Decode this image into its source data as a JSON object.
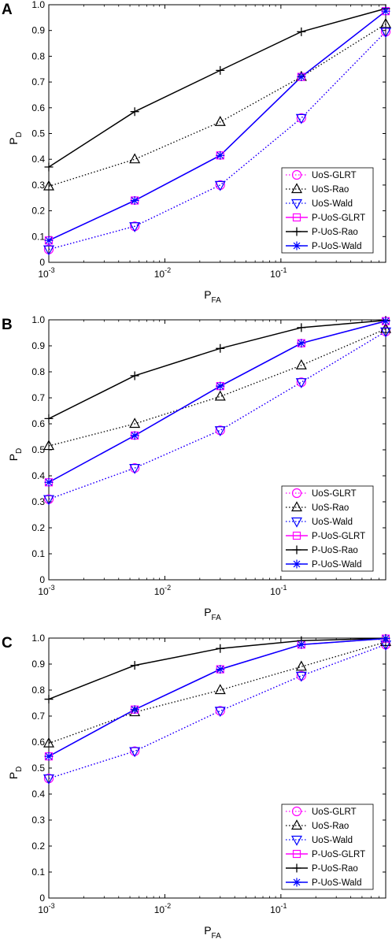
{
  "chart_data": [
    {
      "type": "line",
      "panel": "A",
      "xscale": "log",
      "xlim": [
        0.001,
        0.8
      ],
      "ylim": [
        0,
        1
      ],
      "xlabel_main": "P",
      "xlabel_sub": "FA",
      "ylabel_main": "P",
      "ylabel_sub": "D",
      "x_ticks": [
        {
          "base": "10",
          "exp": "-3"
        },
        {
          "base": "10",
          "exp": "-2"
        },
        {
          "base": "10",
          "exp": "-1"
        }
      ],
      "y_ticks": [
        "0",
        "0.1",
        "0.2",
        "0.3",
        "0.4",
        "0.5",
        "0.6",
        "0.7",
        "0.8",
        "0.9",
        "1.0"
      ],
      "grid": false,
      "legend_position": "bottom-right",
      "x": [
        0.001,
        0.0055,
        0.03,
        0.15,
        0.8
      ],
      "series": [
        {
          "name": "UoS-GLRT",
          "color": "#ff00ff",
          "line": "dotted",
          "marker": "circle",
          "values": [
            0.05,
            0.14,
            0.3,
            0.56,
            0.895
          ]
        },
        {
          "name": "UoS-Rao",
          "color": "#000000",
          "line": "dotted",
          "marker": "triangle-up",
          "values": [
            0.295,
            0.4,
            0.545,
            0.72,
            0.925
          ]
        },
        {
          "name": "UoS-Wald",
          "color": "#0000ff",
          "line": "dotted",
          "marker": "triangle-down",
          "values": [
            0.05,
            0.14,
            0.3,
            0.56,
            0.895
          ]
        },
        {
          "name": "P-UoS-GLRT",
          "color": "#ff00ff",
          "line": "solid",
          "marker": "square",
          "values": [
            0.085,
            0.24,
            0.415,
            0.72,
            0.975
          ]
        },
        {
          "name": "P-UoS-Rao",
          "color": "#000000",
          "line": "solid",
          "marker": "plus",
          "values": [
            0.37,
            0.585,
            0.745,
            0.895,
            0.985
          ]
        },
        {
          "name": "P-UoS-Wald",
          "color": "#0000ff",
          "line": "solid",
          "marker": "asterisk",
          "values": [
            0.085,
            0.24,
            0.415,
            0.72,
            0.975
          ]
        }
      ]
    },
    {
      "type": "line",
      "panel": "B",
      "xscale": "log",
      "xlim": [
        0.001,
        0.8
      ],
      "ylim": [
        0,
        1
      ],
      "xlabel_main": "P",
      "xlabel_sub": "FA",
      "ylabel_main": "P",
      "ylabel_sub": "D",
      "x_ticks": [
        {
          "base": "10",
          "exp": "-3"
        },
        {
          "base": "10",
          "exp": "-2"
        },
        {
          "base": "10",
          "exp": "-1"
        }
      ],
      "y_ticks": [
        "0",
        "0.1",
        "0.2",
        "0.3",
        "0.4",
        "0.5",
        "0.6",
        "0.7",
        "0.8",
        "0.9",
        "1.0"
      ],
      "grid": false,
      "legend_position": "bottom-right",
      "x": [
        0.001,
        0.0055,
        0.03,
        0.15,
        0.8
      ],
      "series": [
        {
          "name": "UoS-GLRT",
          "color": "#ff00ff",
          "line": "dotted",
          "marker": "circle",
          "values": [
            0.31,
            0.43,
            0.575,
            0.76,
            0.955
          ]
        },
        {
          "name": "UoS-Rao",
          "color": "#000000",
          "line": "dotted",
          "marker": "triangle-up",
          "values": [
            0.515,
            0.6,
            0.705,
            0.825,
            0.965
          ]
        },
        {
          "name": "UoS-Wald",
          "color": "#0000ff",
          "line": "dotted",
          "marker": "triangle-down",
          "values": [
            0.31,
            0.43,
            0.575,
            0.76,
            0.955
          ]
        },
        {
          "name": "P-UoS-GLRT",
          "color": "#ff00ff",
          "line": "solid",
          "marker": "square",
          "values": [
            0.375,
            0.555,
            0.745,
            0.91,
            0.995
          ]
        },
        {
          "name": "P-UoS-Rao",
          "color": "#000000",
          "line": "solid",
          "marker": "plus",
          "values": [
            0.62,
            0.785,
            0.89,
            0.97,
            0.998
          ]
        },
        {
          "name": "P-UoS-Wald",
          "color": "#0000ff",
          "line": "solid",
          "marker": "asterisk",
          "values": [
            0.375,
            0.555,
            0.745,
            0.91,
            0.995
          ]
        }
      ]
    },
    {
      "type": "line",
      "panel": "C",
      "xscale": "log",
      "xlim": [
        0.001,
        0.8
      ],
      "ylim": [
        0,
        1
      ],
      "xlabel_main": "P",
      "xlabel_sub": "FA",
      "ylabel_main": "P",
      "ylabel_sub": "D",
      "x_ticks": [
        {
          "base": "10",
          "exp": "-3"
        },
        {
          "base": "10",
          "exp": "-2"
        },
        {
          "base": "10",
          "exp": "-1"
        }
      ],
      "y_ticks": [
        "0",
        "0.1",
        "0.2",
        "0.3",
        "0.4",
        "0.5",
        "0.6",
        "0.7",
        "0.8",
        "0.9",
        "1.0"
      ],
      "grid": false,
      "legend_position": "bottom-right",
      "x": [
        0.001,
        0.0055,
        0.03,
        0.15,
        0.8
      ],
      "series": [
        {
          "name": "UoS-GLRT",
          "color": "#ff00ff",
          "line": "dotted",
          "marker": "circle",
          "values": [
            0.46,
            0.565,
            0.72,
            0.855,
            0.975
          ]
        },
        {
          "name": "UoS-Rao",
          "color": "#000000",
          "line": "dotted",
          "marker": "triangle-up",
          "values": [
            0.595,
            0.715,
            0.8,
            0.89,
            0.985
          ]
        },
        {
          "name": "UoS-Wald",
          "color": "#0000ff",
          "line": "dotted",
          "marker": "triangle-down",
          "values": [
            0.46,
            0.565,
            0.72,
            0.855,
            0.975
          ]
        },
        {
          "name": "P-UoS-GLRT",
          "color": "#ff00ff",
          "line": "solid",
          "marker": "square",
          "values": [
            0.545,
            0.725,
            0.88,
            0.975,
            0.998
          ]
        },
        {
          "name": "P-UoS-Rao",
          "color": "#000000",
          "line": "solid",
          "marker": "plus",
          "values": [
            0.765,
            0.895,
            0.96,
            0.99,
            0.999
          ]
        },
        {
          "name": "P-UoS-Wald",
          "color": "#0000ff",
          "line": "solid",
          "marker": "asterisk",
          "values": [
            0.545,
            0.725,
            0.88,
            0.975,
            0.998
          ]
        }
      ]
    }
  ]
}
